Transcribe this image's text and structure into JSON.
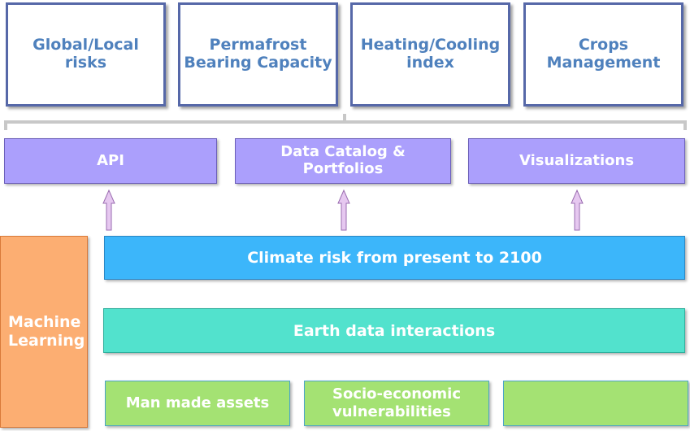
{
  "top_boxes": [
    {
      "label": "Global/Local\nrisks"
    },
    {
      "label": "Permafrost\nBearing Capacity"
    },
    {
      "label": "Heating/Cooling\nindex"
    },
    {
      "label": "Crops\nManagement"
    }
  ],
  "services": [
    {
      "label": "API"
    },
    {
      "label": "Data Catalog &\nPortfolios"
    },
    {
      "label": "Visualizations"
    }
  ],
  "machine_learning": {
    "label": "Machine\nLearning"
  },
  "climate_layer": {
    "label": "Climate risk from present to 2100"
  },
  "earth_layer": {
    "label": "Earth data interactions"
  },
  "bottom_boxes": [
    {
      "label": "Man made assets"
    },
    {
      "label": "Socio-economic\nvulnerabilities"
    },
    {
      "label": ""
    }
  ],
  "colors": {
    "top_border": "#5668a8",
    "top_text": "#4f81bd",
    "service_fill": "#ab9ffc",
    "arrow_fill": "#e6c8f0",
    "ml_fill": "#fcae72",
    "climate_fill": "#3cb6fa",
    "earth_fill": "#52e2cd",
    "bottom_fill": "#a4e273"
  }
}
